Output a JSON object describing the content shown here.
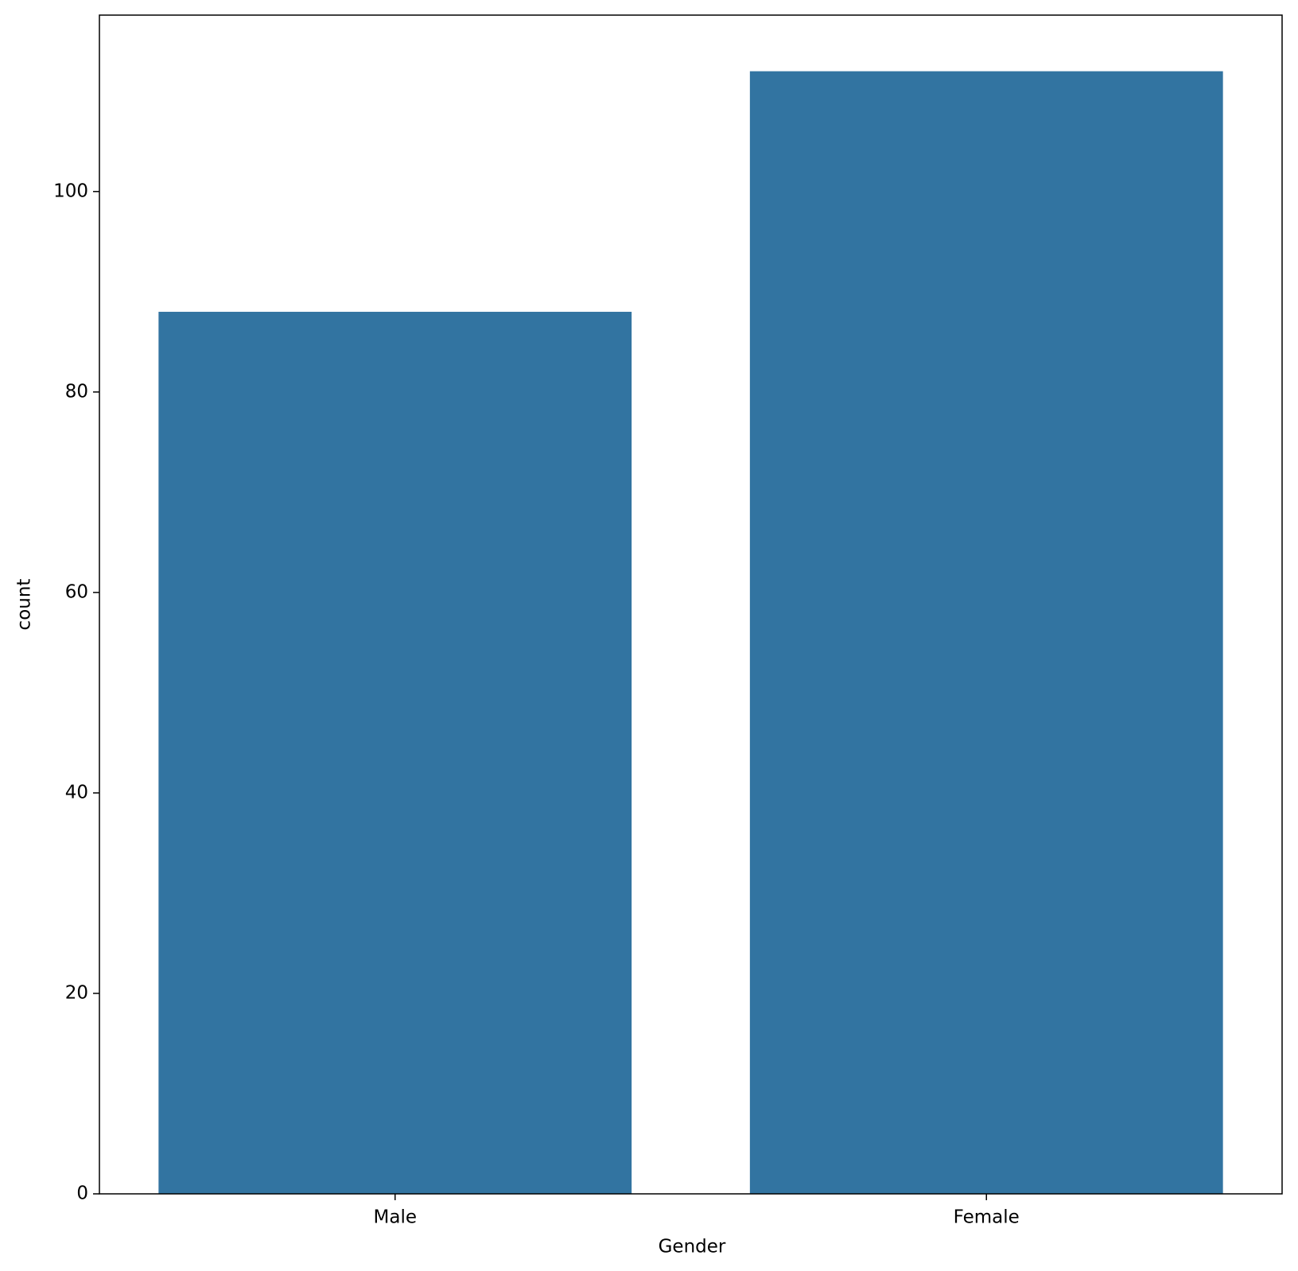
{
  "chart_data": {
    "type": "bar",
    "x_label": "Gender",
    "y_label": "count",
    "categories": [
      "Male",
      "Female"
    ],
    "values": [
      88,
      112
    ],
    "color": "#3274a1",
    "ylim": [
      0,
      117.6
    ],
    "yticks": [
      0,
      20,
      40,
      60,
      80,
      100
    ],
    "grid": false
  }
}
